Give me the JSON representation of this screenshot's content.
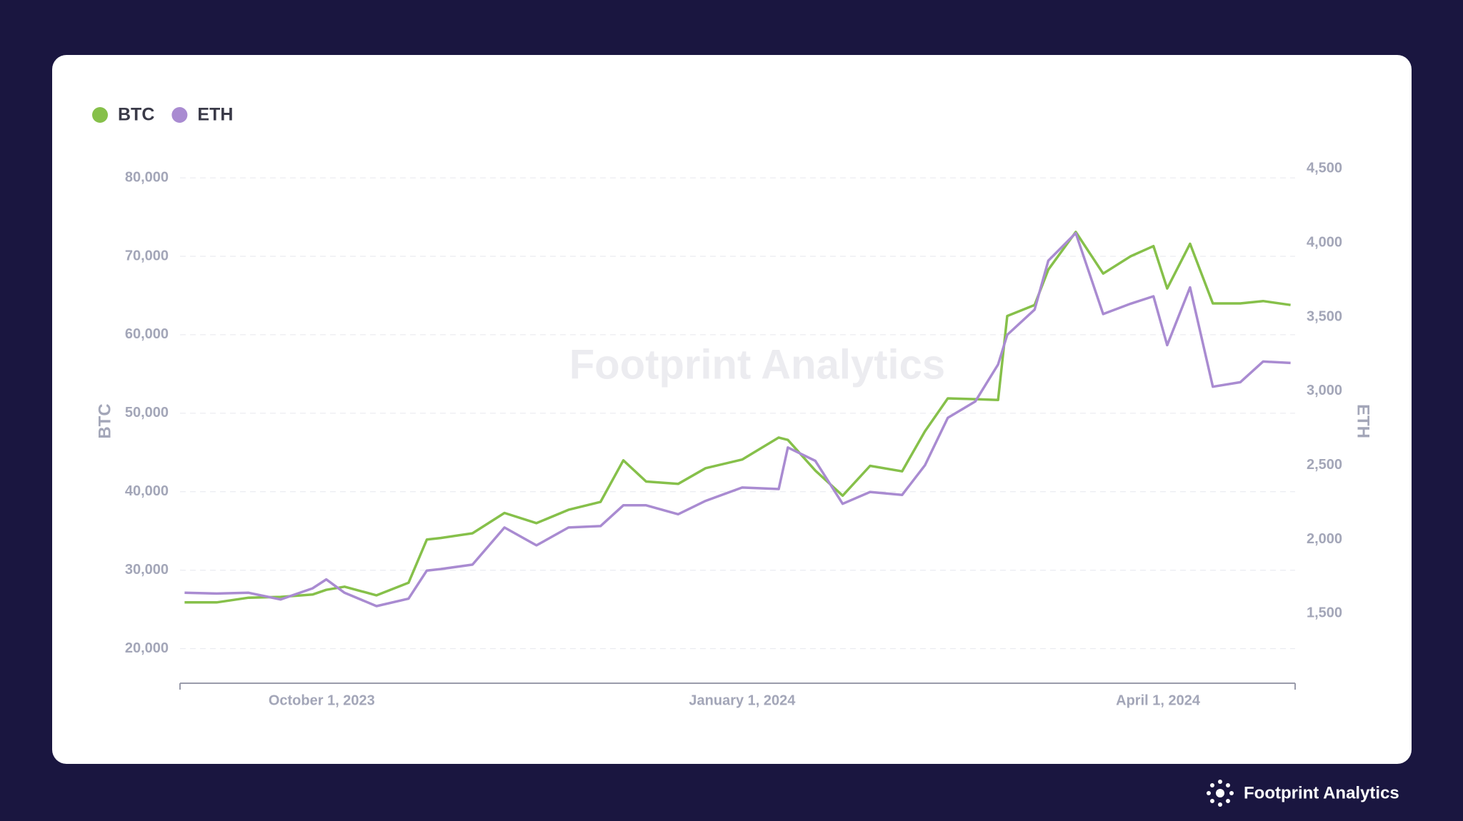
{
  "chart_data": {
    "type": "line",
    "watermark": "Footprint Analytics",
    "brand": "Footprint Analytics",
    "x": [
      "2023-09-01",
      "2023-09-08",
      "2023-09-15",
      "2023-09-22",
      "2023-09-29",
      "2023-10-02",
      "2023-10-06",
      "2023-10-13",
      "2023-10-20",
      "2023-10-24",
      "2023-10-27",
      "2023-11-03",
      "2023-11-10",
      "2023-11-17",
      "2023-11-24",
      "2023-12-01",
      "2023-12-06",
      "2023-12-11",
      "2023-12-18",
      "2023-12-24",
      "2024-01-01",
      "2024-01-09",
      "2024-01-11",
      "2024-01-17",
      "2024-01-23",
      "2024-01-29",
      "2024-02-05",
      "2024-02-10",
      "2024-02-15",
      "2024-02-21",
      "2024-02-26",
      "2024-02-28",
      "2024-03-05",
      "2024-03-08",
      "2024-03-14",
      "2024-03-20",
      "2024-03-26",
      "2024-03-31",
      "2024-04-03",
      "2024-04-08",
      "2024-04-13",
      "2024-04-19",
      "2024-04-24",
      "2024-04-30"
    ],
    "series": [
      {
        "name": "BTC",
        "color": "#86c04a",
        "axis": "y",
        "values": [
          25900,
          25900,
          26500,
          26600,
          26900,
          27500,
          27900,
          26800,
          28400,
          33900,
          34100,
          34700,
          37300,
          36000,
          37700,
          38700,
          44000,
          41300,
          41000,
          43000,
          44100,
          46900,
          46600,
          42700,
          39500,
          43300,
          42600,
          47700,
          51900,
          51800,
          51700,
          62400,
          63800,
          68300,
          73100,
          67800,
          70000,
          71300,
          65900,
          71600,
          64000,
          64000,
          64300,
          63800
        ]
      },
      {
        "name": "ETH",
        "color": "#a98bd1",
        "axis": "y2",
        "values": [
          1640,
          1635,
          1640,
          1595,
          1670,
          1730,
          1640,
          1550,
          1600,
          1790,
          1800,
          1830,
          2080,
          1960,
          2080,
          2090,
          2230,
          2230,
          2170,
          2260,
          2350,
          2340,
          2620,
          2530,
          2240,
          2320,
          2300,
          2500,
          2820,
          2930,
          3180,
          3380,
          3550,
          3880,
          4066,
          3520,
          3590,
          3640,
          3310,
          3700,
          3030,
          3060,
          3200,
          3190
        ]
      }
    ],
    "ylabel": "BTC",
    "y2label": "ETH",
    "xlim": [
      "2023-08-31",
      "2024-05-01"
    ],
    "xticks": [
      {
        "value": "2023-10-01",
        "label": "October 1, 2023"
      },
      {
        "value": "2024-01-01",
        "label": "January 1, 2024"
      },
      {
        "value": "2024-04-01",
        "label": "April 1, 2024"
      }
    ],
    "ylim": [
      15600,
      82100
    ],
    "yticks": [
      {
        "value": 20000,
        "label": "20,000"
      },
      {
        "value": 30000,
        "label": "30,000"
      },
      {
        "value": 40000,
        "label": "40,000"
      },
      {
        "value": 50000,
        "label": "50,000"
      },
      {
        "value": 60000,
        "label": "60,000"
      },
      {
        "value": 70000,
        "label": "70,000"
      },
      {
        "value": 80000,
        "label": "80,000"
      }
    ],
    "y2lim": [
      1030,
      4550
    ],
    "y2ticks": [
      {
        "value": 1500,
        "label": "1,500"
      },
      {
        "value": 2000,
        "label": "2,000"
      },
      {
        "value": 2500,
        "label": "2,500"
      },
      {
        "value": 3000,
        "label": "3,000"
      },
      {
        "value": 3500,
        "label": "3,500"
      },
      {
        "value": 4000,
        "label": "4,000"
      },
      {
        "value": 4500,
        "label": "4,500"
      }
    ],
    "grid": true,
    "legend": "top-left"
  }
}
